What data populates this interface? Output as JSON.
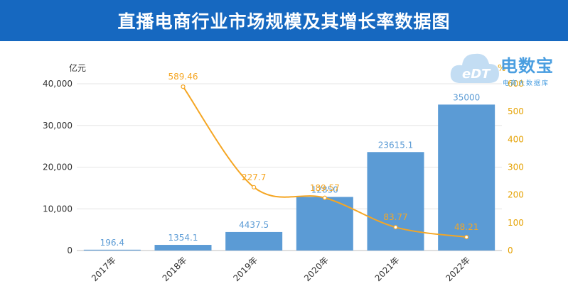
{
  "header": {
    "title": "直播电商行业市场规模及其增长率数据图"
  },
  "logo": {
    "brand": "电数宝",
    "sub": "电商大数据库",
    "mark": "eDT"
  },
  "colors": {
    "header_bg": "#1668c0",
    "bar": "#5b9bd5",
    "bar_label": "#5b9bd5",
    "line": "#f5a623",
    "axis_text": "#333333",
    "right_axis_text": "#e5a100"
  },
  "chart_data": {
    "type": "bar",
    "categories": [
      "2017年",
      "2018年",
      "2019年",
      "2020年",
      "2021年",
      "2022年"
    ],
    "y_unit_left": "亿元",
    "y_unit_right": "%",
    "ylim_left": [
      0,
      40000
    ],
    "yticks_left": [
      "0",
      "10,000",
      "20,000",
      "30,000",
      "40,000"
    ],
    "ylim_right": [
      0,
      600
    ],
    "yticks_right": [
      "0",
      "100",
      "200",
      "300",
      "400",
      "500",
      "600"
    ],
    "series": [
      {
        "kind": "bar",
        "axis": "left",
        "values": [
          196.4,
          1354.1,
          4437.5,
          12850,
          23615.1,
          35000
        ],
        "labels": [
          "196.4",
          "1354.1",
          "4437.5",
          "12850",
          "23615.1",
          "35000"
        ]
      },
      {
        "kind": "line",
        "axis": "right",
        "values": [
          null,
          589.46,
          227.7,
          189.57,
          83.77,
          48.21
        ],
        "labels": [
          "",
          "589.46",
          "227.7",
          "189.57",
          "83.77",
          "48.21"
        ]
      }
    ]
  }
}
